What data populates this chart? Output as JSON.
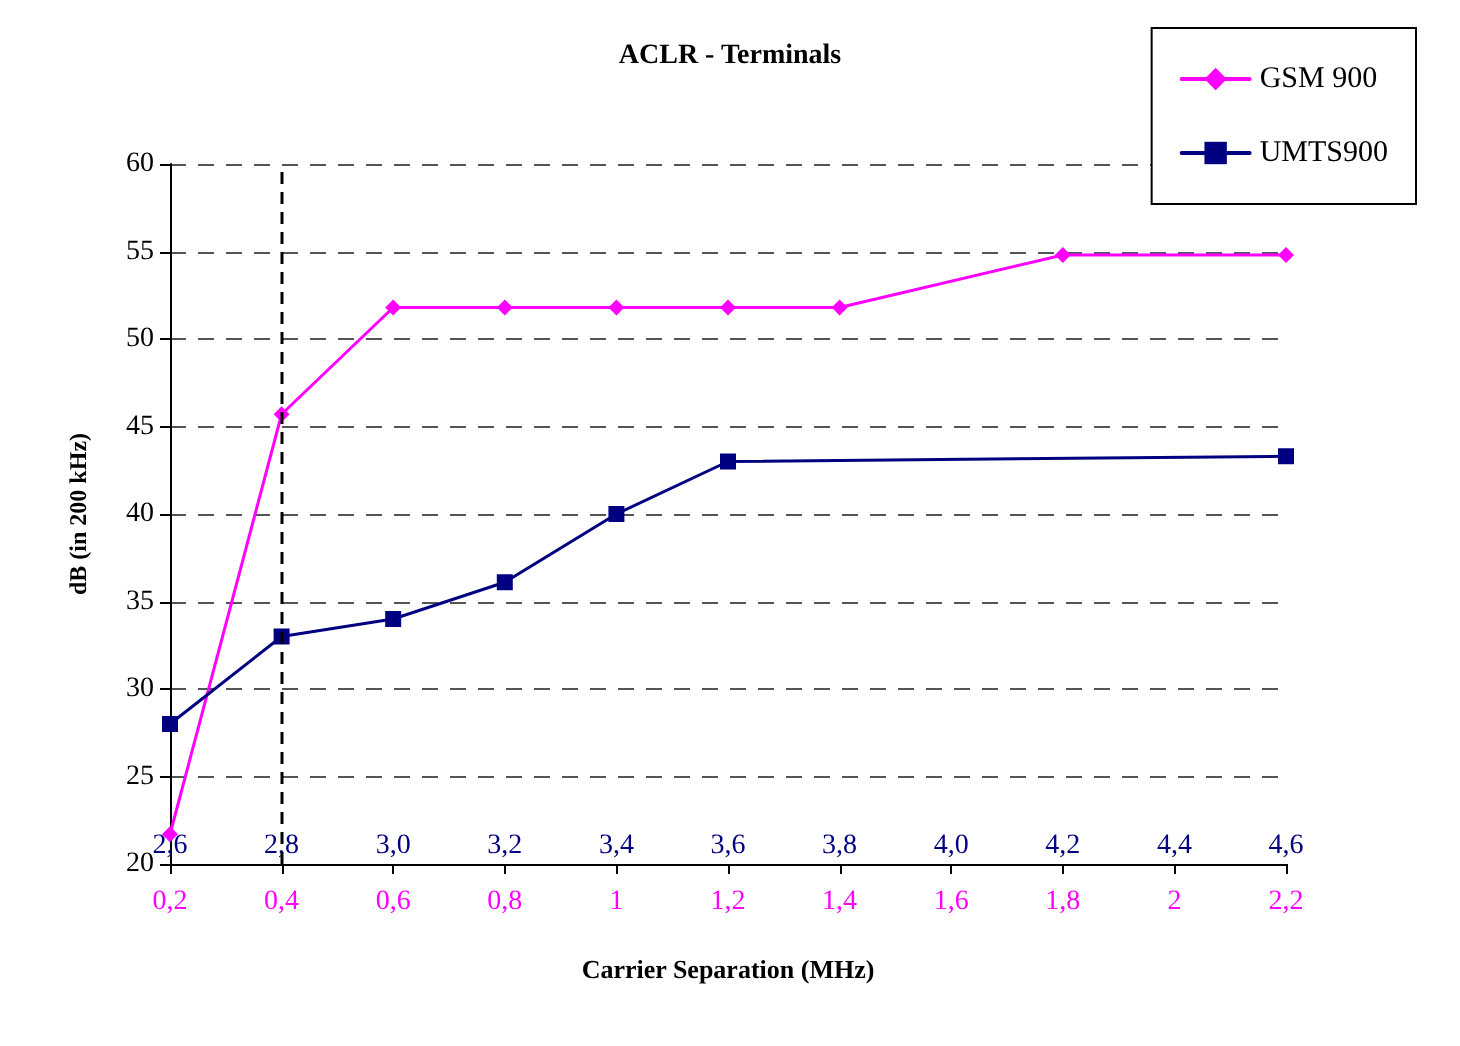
{
  "chart_data": {
    "type": "line",
    "title": "ACLR - Terminals",
    "xlabel": "Carrier Separation (MHz)",
    "ylabel": "dB (in 200 kHz)",
    "xlim": [
      0.2,
      2.2
    ],
    "xticks": [
      {
        "value": 0.2,
        "label": "0,2"
      },
      {
        "value": 0.4,
        "label": "0,4"
      },
      {
        "value": 0.6,
        "label": "0,6"
      },
      {
        "value": 0.8,
        "label": "0,8"
      },
      {
        "value": 1,
        "label": "1"
      },
      {
        "value": 1.2,
        "label": "1,2"
      },
      {
        "value": 1.4,
        "label": "1,4"
      },
      {
        "value": 1.6,
        "label": "1,6"
      },
      {
        "value": 1.8,
        "label": "1,8"
      },
      {
        "value": 2,
        "label": "2"
      },
      {
        "value": 2.2,
        "label": "2,2"
      }
    ],
    "x2lim": [
      2.6,
      4.6
    ],
    "x2ticks": [
      {
        "value": 2.6,
        "label": "2,6"
      },
      {
        "value": 2.8,
        "label": "2,8"
      },
      {
        "value": 3.0,
        "label": "3,0"
      },
      {
        "value": 3.2,
        "label": "3,2"
      },
      {
        "value": 3.4,
        "label": "3,4"
      },
      {
        "value": 3.6,
        "label": "3,6"
      },
      {
        "value": 3.8,
        "label": "3,8"
      },
      {
        "value": 4.0,
        "label": "4,0"
      },
      {
        "value": 4.2,
        "label": "4,2"
      },
      {
        "value": 4.4,
        "label": "4,4"
      },
      {
        "value": 4.6,
        "label": "4,6"
      }
    ],
    "ylim": [
      20,
      60
    ],
    "yticks": [
      20,
      25,
      30,
      35,
      40,
      45,
      50,
      55,
      60
    ],
    "grid": "y",
    "legend": "top right",
    "series": [
      {
        "name": "GSM 900",
        "color": "#ff00ff",
        "marker": "diamond",
        "x": [
          0.2,
          0.4,
          0.6,
          0.8,
          1,
          1.2,
          1.4,
          1.8,
          2.2
        ],
        "values": [
          21.7,
          45.7,
          51.8,
          51.8,
          51.8,
          51.8,
          51.8,
          54.8,
          54.8
        ]
      },
      {
        "name": "UMTS900",
        "color": "#000080",
        "marker": "square",
        "axis": "x2",
        "x": [
          2.6,
          2.8,
          3.0,
          3.2,
          3.4,
          3.6,
          4.6
        ],
        "values": [
          28,
          33,
          34,
          36.1,
          40,
          43,
          43.3
        ]
      }
    ],
    "ref_lines": [
      {
        "axis": "x",
        "value": 0.4,
        "color": "#000000",
        "line_style": "dashed"
      }
    ]
  }
}
